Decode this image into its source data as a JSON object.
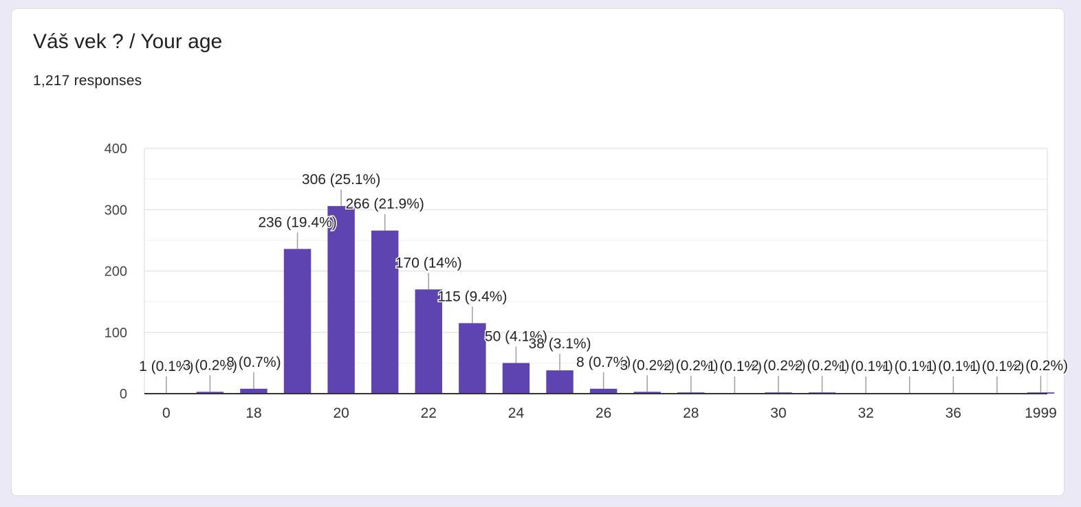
{
  "question": {
    "title": "Váš vek ? / Your age",
    "responses": "1,217 responses"
  },
  "colors": {
    "bar": "#5e44b0",
    "grid": "#e6e6e6",
    "axis": "#333333",
    "leader": "#9e9e9e"
  },
  "chart_data": {
    "type": "bar",
    "categories": [
      "0",
      "17",
      "18",
      "19",
      "20",
      "21",
      "22",
      "23",
      "24",
      "25",
      "26",
      "27",
      "28",
      "29",
      "30",
      "31",
      "32",
      "33",
      "36",
      "37",
      "1999"
    ],
    "values": [
      1,
      3,
      8,
      236,
      306,
      266,
      170,
      115,
      50,
      38,
      8,
      3,
      2,
      1,
      2,
      2,
      1,
      1,
      1,
      1,
      2
    ],
    "data_labels": [
      "1 (0.1%)",
      "3 (0.2%)",
      "8 (0.7%)",
      "236 (19.4%)",
      "306 (25.1%)",
      "266 (21.9%)",
      "170 (14%)",
      "115 (9.4%)",
      "50 (4.1%)",
      "38 (3.1%)",
      "8 (0.7%)",
      "3 (0.2%)",
      "2 (0.2%)",
      "1 (0.1%)",
      "2 (0.2%)",
      "2 (0.2%)",
      "1 (0.1%)",
      "1 (0.1%)",
      "1 (0.1%)",
      "1 (0.1%)",
      "2 (0.2%)"
    ],
    "x_tick_labels": [
      "0",
      "18",
      "20",
      "22",
      "24",
      "26",
      "28",
      "30",
      "32",
      "36",
      "1999"
    ],
    "y_ticks": [
      0,
      100,
      200,
      300,
      400
    ],
    "ylim": [
      0,
      400
    ],
    "grid": true,
    "title": "",
    "xlabel": "",
    "ylabel": ""
  }
}
